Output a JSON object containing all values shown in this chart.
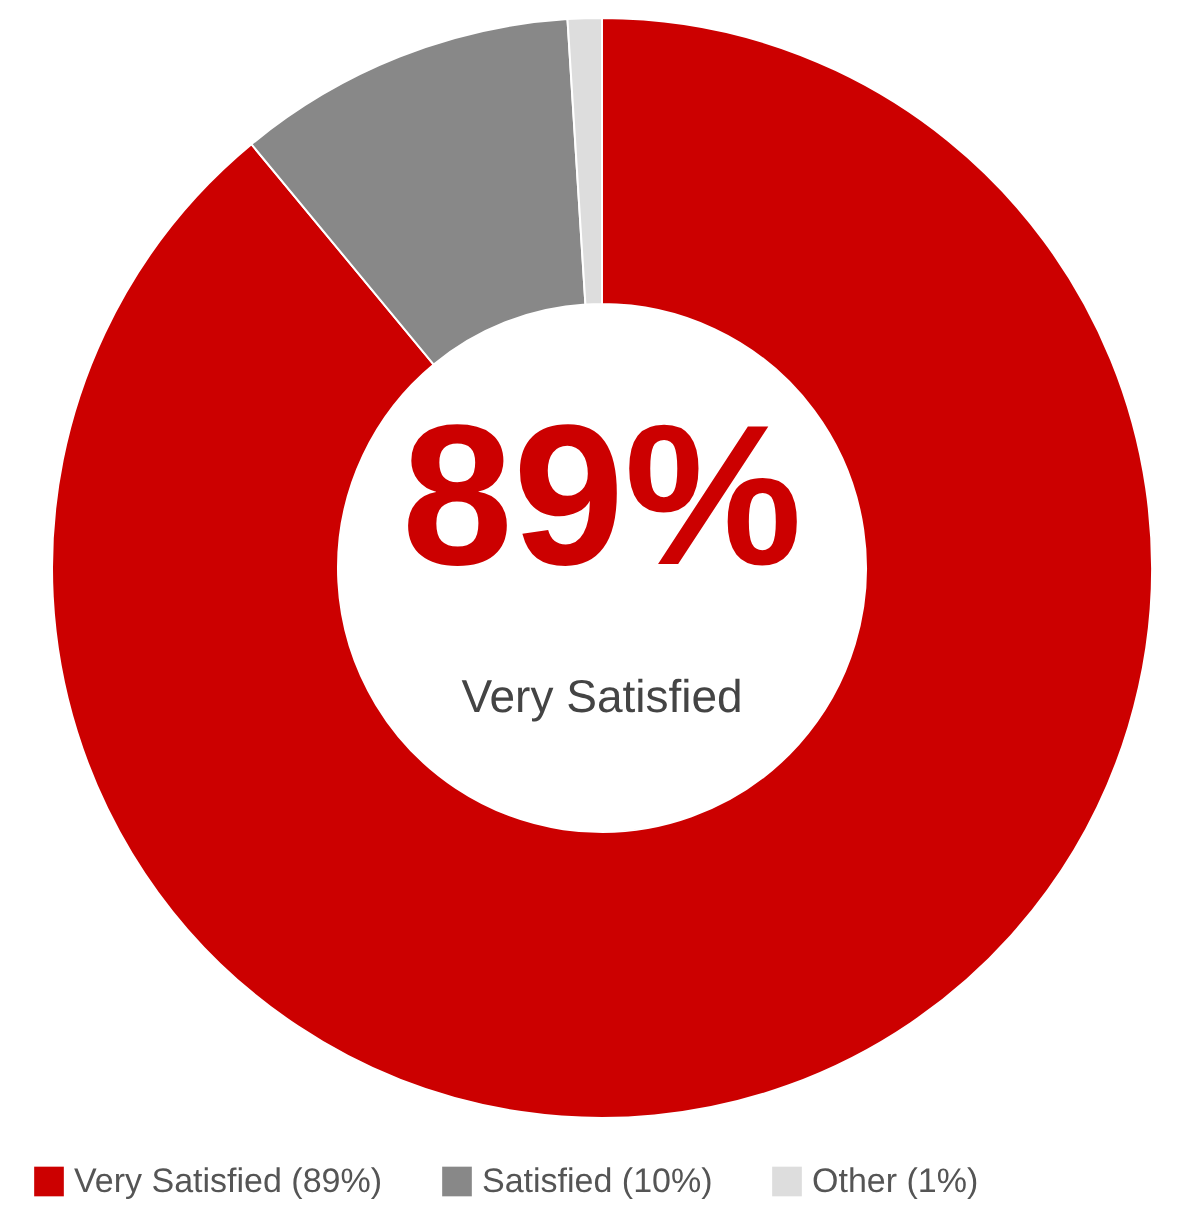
{
  "chart_data": {
    "type": "donut",
    "categories": [
      "Very Satisfied (89%)",
      "Satisfied (10%)",
      "Other (1%)"
    ],
    "values": [
      89,
      10,
      1
    ],
    "colors": [
      "#cc0000",
      "#888888",
      "#dddddd"
    ],
    "annotations": [
      "89%",
      "Very Satisfied"
    ],
    "legend": "bottom"
  }
}
